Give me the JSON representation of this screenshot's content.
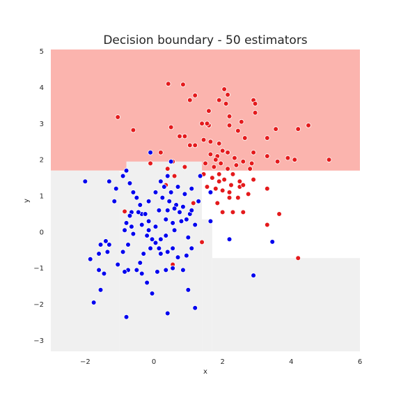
{
  "chart_data": {
    "type": "scatter",
    "title": "Decision boundary - 50 estimators",
    "xlabel": "x",
    "ylabel": "y",
    "xlim": [
      -3,
      6
    ],
    "ylim": [
      -3.3,
      5.05
    ],
    "xticks": [
      -2,
      0,
      2,
      4,
      6
    ],
    "xtick_labels": [
      "−2",
      "0",
      "2",
      "4",
      "6"
    ],
    "yticks": [
      -3,
      -2,
      -1,
      0,
      1,
      2,
      3,
      4,
      5
    ],
    "ytick_labels": [
      "−3",
      "−2",
      "−1",
      "0",
      "1",
      "2",
      "3",
      "4",
      "5"
    ],
    "grid": false,
    "colors": {
      "region_class_1": "#fbb4ae",
      "region_class_0": "#f0f0f0",
      "series_class_1": "#e41a1c",
      "series_class_0": "#0000ee",
      "marker_edge": "#ffffff"
    },
    "regions": [
      {
        "class": 1,
        "x": [
          -3,
          6
        ],
        "y": [
          1.7,
          5.05
        ]
      },
      {
        "class": 0,
        "x": [
          -3,
          -1.0
        ],
        "y": [
          -3.3,
          1.7
        ]
      },
      {
        "class": 0,
        "x": [
          -1.0,
          -0.8
        ],
        "y": [
          -3.3,
          1.65
        ]
      },
      {
        "class": 0,
        "x": [
          -0.8,
          1.4
        ],
        "y": [
          -3.3,
          1.95
        ]
      },
      {
        "class": 0,
        "x": [
          1.4,
          1.7
        ],
        "y": [
          -3.3,
          0.35
        ]
      },
      {
        "class": 0,
        "x": [
          1.7,
          6
        ],
        "y": [
          -3.3,
          -0.72
        ]
      }
    ],
    "series": [
      {
        "class": 1,
        "points": [
          [
            0.42,
            4.1
          ],
          [
            0.85,
            4.08
          ],
          [
            1.2,
            3.78
          ],
          [
            1.05,
            3.65
          ],
          [
            -1.05,
            3.18
          ],
          [
            -0.6,
            2.82
          ],
          [
            0.5,
            2.9
          ],
          [
            0.9,
            2.65
          ],
          [
            0.75,
            2.65
          ],
          [
            1.4,
            3.0
          ],
          [
            1.6,
            2.95
          ],
          [
            1.2,
            2.4
          ],
          [
            1.45,
            2.55
          ],
          [
            1.65,
            2.5
          ],
          [
            1.6,
            3.35
          ],
          [
            1.55,
            3.0
          ],
          [
            1.65,
            2.15
          ],
          [
            1.85,
            2.1
          ],
          [
            2.0,
            2.25
          ],
          [
            2.15,
            2.2
          ],
          [
            2.2,
            2.95
          ],
          [
            2.1,
            3.55
          ],
          [
            2.15,
            3.8
          ],
          [
            2.05,
            3.95
          ],
          [
            1.9,
            3.65
          ],
          [
            2.2,
            3.2
          ],
          [
            2.45,
            2.8
          ],
          [
            2.55,
            3.05
          ],
          [
            2.65,
            2.6
          ],
          [
            2.9,
            3.65
          ],
          [
            2.95,
            3.55
          ],
          [
            2.95,
            3.3
          ],
          [
            3.3,
            2.6
          ],
          [
            3.55,
            2.85
          ],
          [
            2.9,
            2.2
          ],
          [
            3.3,
            2.1
          ],
          [
            3.6,
            1.95
          ],
          [
            3.9,
            2.05
          ],
          [
            4.1,
            2.0
          ],
          [
            4.2,
            2.85
          ],
          [
            4.5,
            2.95
          ],
          [
            5.1,
            2.0
          ],
          [
            1.8,
            2.0
          ],
          [
            1.75,
            1.8
          ],
          [
            1.9,
            1.6
          ],
          [
            2.05,
            1.45
          ],
          [
            2.25,
            1.3
          ],
          [
            2.5,
            1.25
          ],
          [
            2.75,
            1.05
          ],
          [
            2.9,
            1.45
          ],
          [
            3.3,
            1.2
          ],
          [
            3.65,
            0.5
          ],
          [
            3.3,
            0.2
          ],
          [
            2.6,
            0.55
          ],
          [
            2.3,
            0.55
          ],
          [
            2.0,
            0.55
          ],
          [
            1.85,
            0.8
          ],
          [
            2.2,
            0.95
          ],
          [
            2.45,
            0.95
          ],
          [
            2.6,
            1.3
          ],
          [
            2.8,
            1.75
          ],
          [
            1.45,
            1.6
          ],
          [
            1.7,
            1.5
          ],
          [
            1.55,
            1.25
          ],
          [
            1.8,
            1.2
          ],
          [
            2.0,
            1.15
          ],
          [
            2.2,
            1.1
          ],
          [
            2.4,
            1.85
          ],
          [
            2.6,
            1.95
          ],
          [
            2.85,
            1.9
          ],
          [
            2.5,
            1.4
          ],
          [
            2.35,
            2.05
          ],
          [
            1.95,
            1.9
          ],
          [
            2.15,
            1.75
          ],
          [
            2.3,
            1.6
          ],
          [
            1.9,
            1.4
          ],
          [
            1.5,
            1.9
          ],
          [
            0.4,
            1.75
          ],
          [
            0.55,
            1.95
          ],
          [
            0.9,
            1.8
          ],
          [
            0.6,
            1.55
          ],
          [
            0.35,
            1.3
          ],
          [
            0.95,
            0.35
          ],
          [
            1.15,
            0.8
          ],
          [
            1.4,
            -0.28
          ],
          [
            -0.85,
            0.57
          ],
          [
            0.55,
            -0.9
          ],
          [
            -0.1,
            1.9
          ],
          [
            0.2,
            2.2
          ],
          [
            1.05,
            2.4
          ],
          [
            1.9,
            2.45
          ],
          [
            4.2,
            -0.72
          ]
        ]
      },
      {
        "class": 0,
        "points": [
          [
            -2.0,
            1.4
          ],
          [
            -1.3,
            1.4
          ],
          [
            -1.1,
            1.2
          ],
          [
            -1.15,
            0.85
          ],
          [
            -0.8,
            1.7
          ],
          [
            -0.9,
            1.55
          ],
          [
            -0.7,
            1.35
          ],
          [
            -0.6,
            1.1
          ],
          [
            -0.5,
            0.95
          ],
          [
            -0.4,
            0.75
          ],
          [
            -0.35,
            0.5
          ],
          [
            -0.45,
            0.55
          ],
          [
            -0.65,
            0.55
          ],
          [
            -0.7,
            0.45
          ],
          [
            -0.8,
            0.25
          ],
          [
            -0.65,
            0.15
          ],
          [
            -0.85,
            0.05
          ],
          [
            -0.6,
            -0.05
          ],
          [
            -0.75,
            -0.35
          ],
          [
            -0.9,
            -0.55
          ],
          [
            -1.05,
            -0.9
          ],
          [
            -0.75,
            -1.05
          ],
          [
            -0.85,
            -1.1
          ],
          [
            -1.3,
            -0.35
          ],
          [
            -1.4,
            -0.25
          ],
          [
            -1.55,
            -0.35
          ],
          [
            -1.6,
            -0.6
          ],
          [
            -1.35,
            -0.55
          ],
          [
            -1.85,
            -0.75
          ],
          [
            -1.6,
            -1.05
          ],
          [
            -1.45,
            -1.15
          ],
          [
            -1.55,
            -1.6
          ],
          [
            -1.75,
            -1.95
          ],
          [
            -0.8,
            -2.35
          ],
          [
            -0.2,
            -1.4
          ],
          [
            -0.05,
            -1.7
          ],
          [
            0.1,
            -1.1
          ],
          [
            0.35,
            -1.05
          ],
          [
            0.55,
            -1.0
          ],
          [
            0.85,
            -1.05
          ],
          [
            1.0,
            -1.6
          ],
          [
            1.2,
            -2.1
          ],
          [
            0.4,
            -2.25
          ],
          [
            0.2,
            -0.6
          ],
          [
            0.4,
            -0.55
          ],
          [
            0.55,
            -0.45
          ],
          [
            0.7,
            -0.7
          ],
          [
            0.95,
            -0.65
          ],
          [
            1.1,
            -0.45
          ],
          [
            1.0,
            -0.15
          ],
          [
            1.2,
            0.2
          ],
          [
            1.05,
            0.5
          ],
          [
            0.85,
            0.7
          ],
          [
            0.65,
            0.75
          ],
          [
            0.4,
            0.6
          ],
          [
            0.35,
            0.35
          ],
          [
            0.55,
            0.25
          ],
          [
            0.6,
            0.05
          ],
          [
            0.35,
            -0.1
          ],
          [
            0.2,
            -0.2
          ],
          [
            0.05,
            -0.3
          ],
          [
            -0.1,
            -0.45
          ],
          [
            -0.3,
            -0.6
          ],
          [
            -0.2,
            -0.1
          ],
          [
            -0.35,
            0.2
          ],
          [
            -0.15,
            0.3
          ],
          [
            0.05,
            0.15
          ],
          [
            0.15,
            0.6
          ],
          [
            0.25,
            0.95
          ],
          [
            0.5,
            1.1
          ],
          [
            0.7,
            1.25
          ],
          [
            0.9,
            1.05
          ],
          [
            1.1,
            1.2
          ],
          [
            1.35,
            1.55
          ],
          [
            1.3,
            0.85
          ],
          [
            1.1,
            0.6
          ],
          [
            0.95,
            0.35
          ],
          [
            0.8,
            0.3
          ],
          [
            0.6,
            0.65
          ],
          [
            0.45,
            0.85
          ],
          [
            0.3,
            1.25
          ],
          [
            0.4,
            1.55
          ],
          [
            0.2,
            1.4
          ],
          [
            0.05,
            1.1
          ],
          [
            -0.15,
            0.85
          ],
          [
            -0.25,
            0.5
          ],
          [
            -0.15,
            0.05
          ],
          [
            -0.05,
            -0.2
          ],
          [
            0.15,
            -0.45
          ],
          [
            -0.4,
            -0.85
          ],
          [
            -0.5,
            -1.05
          ],
          [
            -0.35,
            -1.15
          ],
          [
            -0.1,
            2.2
          ],
          [
            0.5,
            1.95
          ],
          [
            1.65,
            1.1
          ],
          [
            1.65,
            0.3
          ],
          [
            2.2,
            -0.2
          ],
          [
            3.45,
            -0.27
          ],
          [
            2.9,
            -1.2
          ],
          [
            0.75,
            0.55
          ]
        ]
      }
    ]
  }
}
